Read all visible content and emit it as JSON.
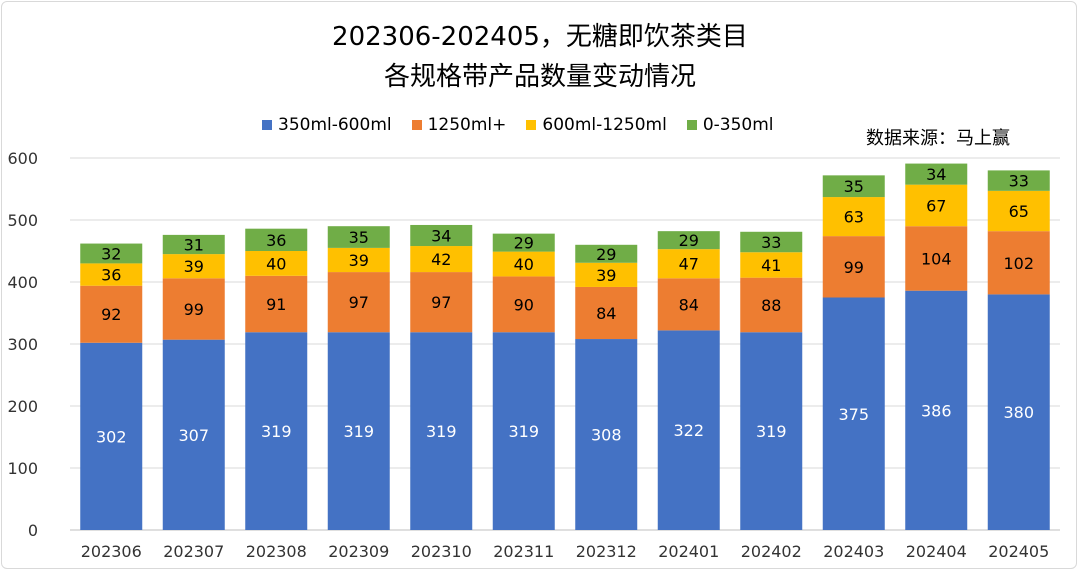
{
  "chart_data": {
    "type": "bar",
    "stacked": true,
    "title": [
      "202306-202405，无糖即饮茶类目",
      "各规格带产品数量变动情况"
    ],
    "source": "数据来源：马上赢",
    "categories": [
      "202306",
      "202307",
      "202308",
      "202309",
      "202310",
      "202311",
      "202312",
      "202401",
      "202402",
      "202403",
      "202404",
      "202405"
    ],
    "series": [
      {
        "name": "350ml-600ml",
        "color": "#4472C4",
        "label_color": "#ffffff",
        "values": [
          302,
          307,
          319,
          319,
          319,
          319,
          308,
          322,
          319,
          375,
          386,
          380
        ]
      },
      {
        "name": "1250ml+",
        "color": "#ED7D31",
        "label_color": "#000000",
        "values": [
          92,
          99,
          91,
          97,
          97,
          90,
          84,
          84,
          88,
          99,
          104,
          102
        ]
      },
      {
        "name": "600ml-1250ml",
        "color": "#FFC000",
        "label_color": "#000000",
        "values": [
          36,
          39,
          40,
          39,
          42,
          40,
          39,
          47,
          41,
          63,
          67,
          65
        ]
      },
      {
        "name": "0-350ml",
        "color": "#70AD47",
        "label_color": "#000000",
        "values": [
          32,
          31,
          36,
          35,
          34,
          29,
          29,
          29,
          33,
          35,
          34,
          33
        ]
      }
    ],
    "ylim": [
      0,
      600
    ],
    "yticks": [
      "0",
      "100",
      "200",
      "300",
      "400",
      "500",
      "600"
    ],
    "grid": true,
    "legend_position": "top",
    "xlabel": "",
    "ylabel": ""
  }
}
